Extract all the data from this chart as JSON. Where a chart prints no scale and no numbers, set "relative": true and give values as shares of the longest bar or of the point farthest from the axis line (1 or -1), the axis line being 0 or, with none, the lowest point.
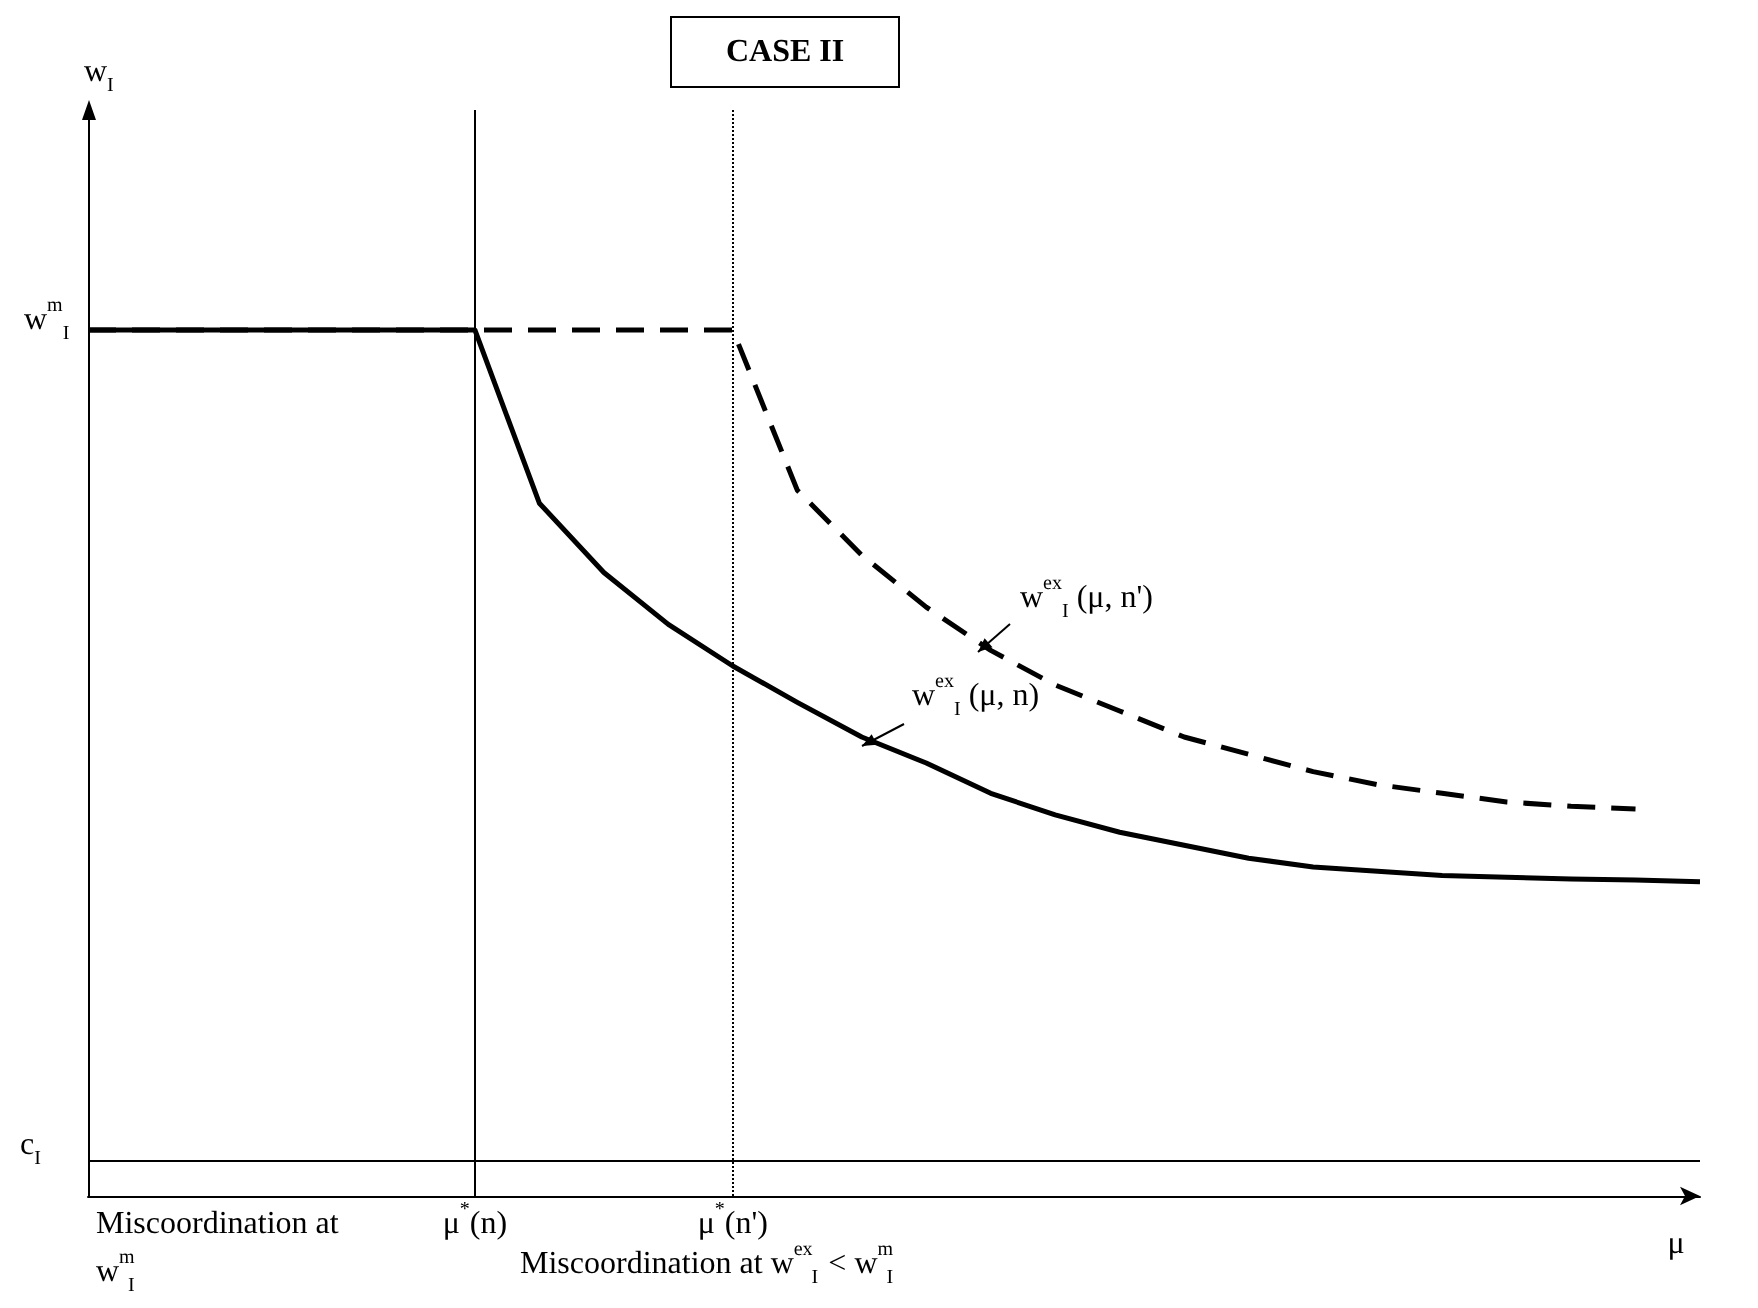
{
  "chart_data": {
    "type": "line",
    "title": "CASE II",
    "xlabel": "μ",
    "relative": true,
    "marker": "none",
    "categories": [
      null,
      null,
      null,
      null,
      null,
      null,
      "μ$^{*}$(n)",
      null,
      null,
      null,
      "μ$^{*}$(n')",
      null,
      null,
      null,
      null,
      null,
      null,
      null,
      null,
      null,
      null,
      null,
      null,
      null,
      null,
      null
    ],
    "series": [
      {
        "color": "#000000",
        "line_style": "solid",
        "values": [
          1,
          1,
          1,
          1,
          1,
          1,
          1,
          0.8,
          0.72,
          0.66,
          0.612,
          0.57,
          0.53,
          0.5,
          0.465,
          0.44,
          0.42,
          0.405,
          0.39,
          0.38,
          0.375,
          0.37,
          0.368,
          0.366,
          0.365,
          0.363
        ]
      },
      {
        "color": "#000000",
        "line_style": "dashed",
        "values": [
          1,
          1,
          1,
          1,
          1,
          1,
          1,
          1,
          1,
          1,
          1,
          0.815,
          0.74,
          0.68,
          0.63,
          0.59,
          0.56,
          0.53,
          0.51,
          0.49,
          0.475,
          0.465,
          0.455,
          0.45,
          0.447,
          null
        ]
      }
    ],
    "ref_lines": [
      {
        "axis": "y",
        "value": 0.04,
        "label": "c$_{I}$",
        "line_style": "solid"
      },
      {
        "axis": "x",
        "value": "μ$^{*}$(n)",
        "line_style": "solid"
      },
      {
        "axis": "x",
        "value": "μ$^{*}$(n')",
        "line_style": "dotted"
      }
    ],
    "annotations": [
      "w$^{m}$$_{I}$",
      "w$^{ex}$$_{I}$ (μ, n)",
      "w$^{ex}$$_{I}$ (μ, n')",
      "Miscoordination at w$^{m}$$_{I}$",
      "Miscoordination at w$^{ex}$$_{I}$ < w$^{m}$$_{I}$",
      "w$_{I}$"
    ]
  }
}
